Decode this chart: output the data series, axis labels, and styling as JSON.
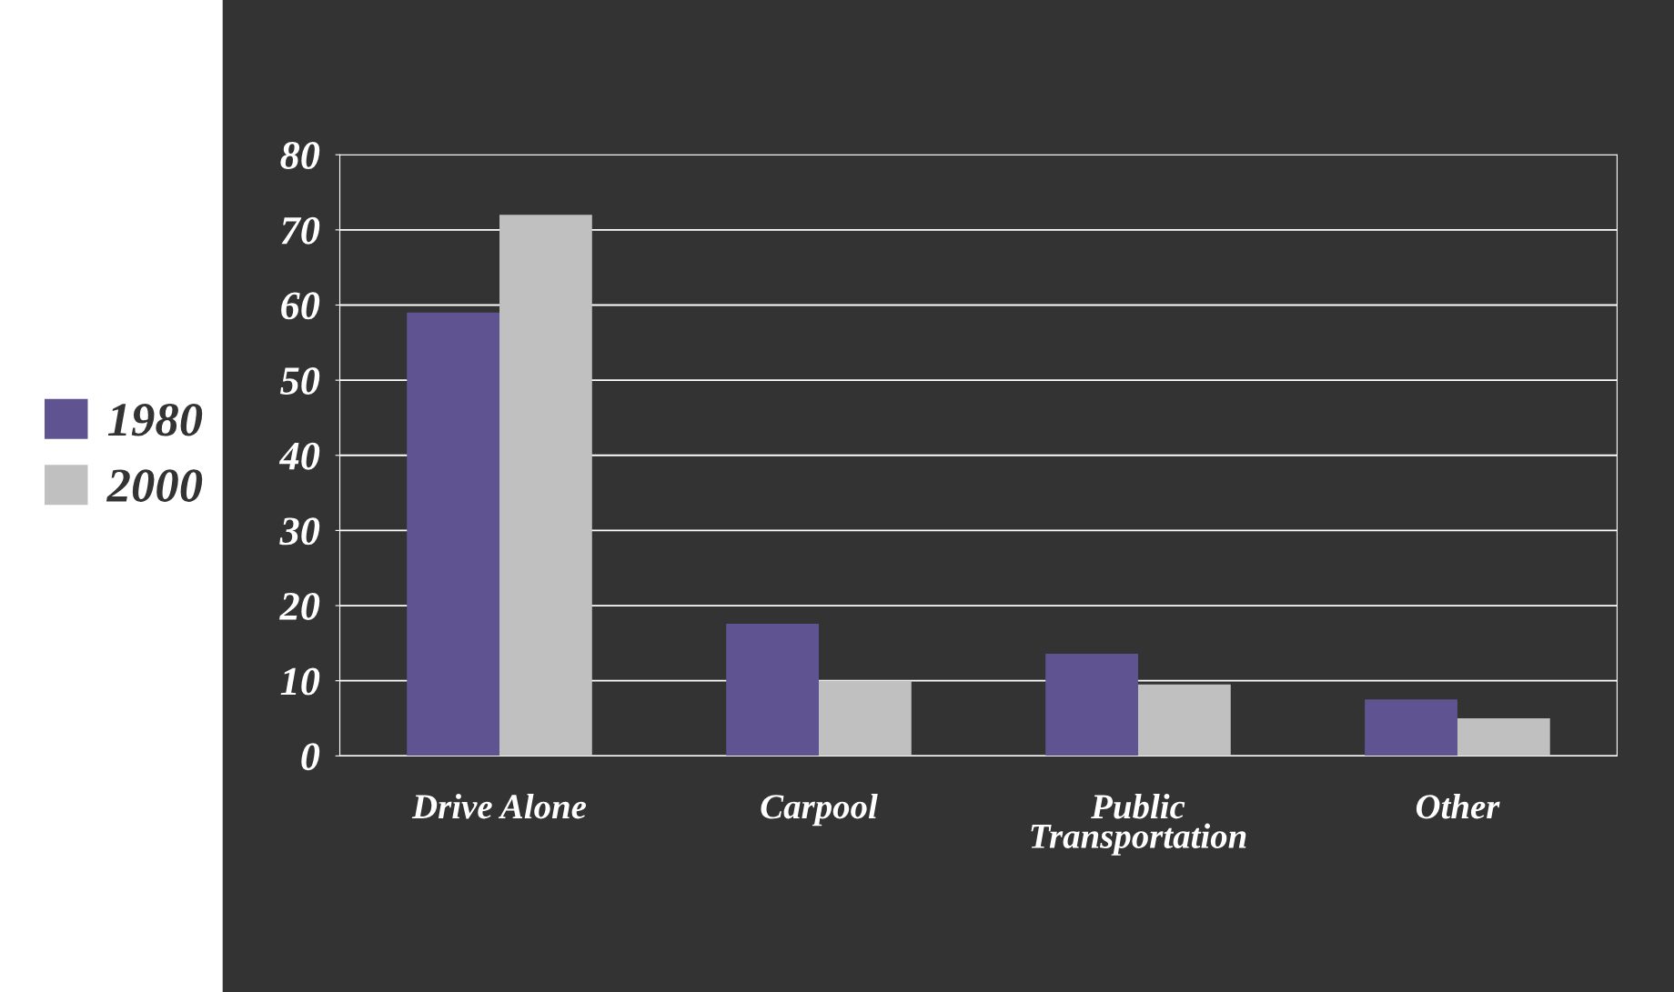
{
  "chart_data": {
    "type": "bar",
    "categories": [
      "Drive Alone",
      "Carpool",
      "Public\nTransportation",
      "Other"
    ],
    "series": [
      {
        "name": "1980",
        "color": "#5f5491",
        "values": [
          59,
          17.6,
          13.6,
          7.5
        ]
      },
      {
        "name": "2000",
        "color": "#c0c0c0",
        "values": [
          72,
          10,
          9.5,
          5
        ]
      }
    ],
    "ylim": [
      0,
      80
    ],
    "yticks": [
      0,
      10,
      20,
      30,
      40,
      50,
      60,
      70,
      80
    ],
    "grid": "y",
    "legend": "left"
  }
}
